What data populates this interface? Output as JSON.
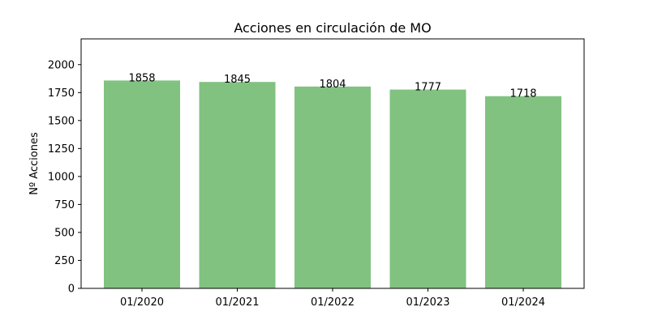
{
  "chart_data": {
    "type": "bar",
    "title": "Acciones en circulación de MO",
    "xlabel": "",
    "ylabel": "Nº Acciones",
    "categories": [
      "01/2020",
      "01/2021",
      "01/2022",
      "01/2023",
      "01/2024"
    ],
    "values": [
      1858,
      1845,
      1804,
      1777,
      1718
    ],
    "data_labels": [
      "1858",
      "1845",
      "1804",
      "1777",
      "1718"
    ],
    "ylim": [
      0,
      2230
    ],
    "yticks": [
      0,
      250,
      500,
      750,
      1000,
      1250,
      1500,
      1750,
      2000
    ],
    "bar_color": "#81c281",
    "grid": false
  }
}
